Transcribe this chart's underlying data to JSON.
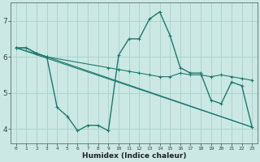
{
  "title": "",
  "xlabel": "Humidex (Indice chaleur)",
  "bg_color": "#cce8e4",
  "grid_color": "#aad4ce",
  "line_color": "#1a7a6e",
  "xlim": [
    -0.5,
    23.5
  ],
  "ylim": [
    3.6,
    7.5
  ],
  "xtick_vals": [
    0,
    1,
    2,
    3,
    4,
    5,
    6,
    7,
    8,
    9,
    10,
    11,
    12,
    13,
    14,
    15,
    16,
    17,
    18,
    19,
    20,
    21,
    22,
    23
  ],
  "xtick_labels": [
    "0",
    "1",
    "2",
    "3",
    "4",
    "5",
    "6",
    "7",
    "8",
    "9",
    "10",
    "11",
    "12",
    "13",
    "14",
    "15",
    "16",
    "17",
    "18",
    "19",
    "20",
    "21",
    "22",
    "23"
  ],
  "ytick_values": [
    4,
    5,
    6,
    7
  ],
  "lines": [
    {
      "x": [
        0,
        1,
        2,
        3,
        4,
        5,
        6,
        7,
        8,
        9,
        10,
        11,
        12,
        13,
        14,
        15,
        16,
        17,
        18,
        19,
        20,
        21,
        22,
        23
      ],
      "y": [
        6.25,
        6.25,
        6.1,
        6.0,
        4.6,
        4.35,
        3.95,
        4.1,
        4.1,
        3.95,
        6.05,
        6.5,
        6.5,
        7.05,
        7.25,
        6.6,
        5.7,
        5.55,
        5.55,
        4.8,
        4.7,
        5.3,
        5.2,
        4.05
      ],
      "marker": true,
      "lw": 1.0
    },
    {
      "x": [
        0,
        1,
        2,
        3,
        9,
        10,
        11,
        12,
        13,
        14,
        15,
        16,
        17,
        18,
        19,
        20,
        21,
        22,
        23
      ],
      "y": [
        6.25,
        6.25,
        6.1,
        6.0,
        5.7,
        5.65,
        5.6,
        5.55,
        5.5,
        5.45,
        5.45,
        5.55,
        5.5,
        5.5,
        5.45,
        5.5,
        5.45,
        5.4,
        5.35
      ],
      "marker": true,
      "lw": 0.8
    },
    {
      "x": [
        0,
        23
      ],
      "y": [
        6.25,
        4.05
      ],
      "marker": false,
      "lw": 0.8
    },
    {
      "x": [
        0,
        3,
        23
      ],
      "y": [
        6.25,
        6.0,
        4.05
      ],
      "marker": false,
      "lw": 0.8
    }
  ]
}
